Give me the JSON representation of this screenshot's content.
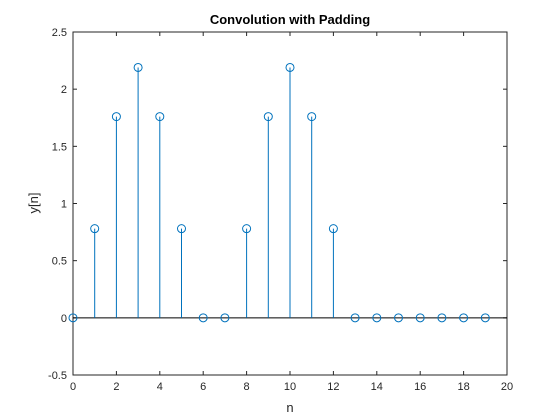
{
  "chart_data": {
    "type": "stem",
    "title": "Convolution with Padding",
    "xlabel": "n",
    "ylabel": "y[n]",
    "xlim": [
      0,
      20
    ],
    "ylim": [
      -0.5,
      2.5
    ],
    "xticks": [
      0,
      2,
      4,
      6,
      8,
      10,
      12,
      14,
      16,
      18,
      20
    ],
    "yticks": [
      -0.5,
      0,
      0.5,
      1,
      1.5,
      2,
      2.5
    ],
    "grid": false,
    "series": [
      {
        "x": [
          0,
          1,
          2,
          3,
          4,
          5,
          6,
          7,
          8,
          9,
          10,
          11,
          12,
          13,
          14,
          15,
          16,
          17,
          18,
          19
        ],
        "values": [
          0,
          0.78,
          1.76,
          2.19,
          1.76,
          0.78,
          0,
          0,
          0.78,
          1.76,
          2.19,
          1.76,
          0.78,
          0,
          0,
          0,
          0,
          0,
          0,
          0
        ]
      }
    ],
    "colors": {
      "series": "#0072BD",
      "axis": "#262626",
      "baseline": "#000000"
    }
  }
}
